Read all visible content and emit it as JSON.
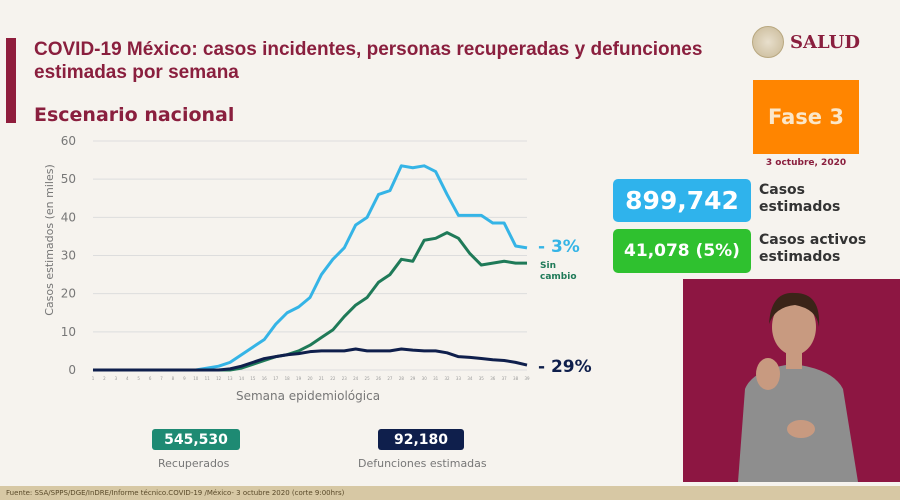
{
  "header": {
    "title": "COVID-19 México: casos incidentes, personas recuperadas y defunciones estimadas por semana",
    "subtitle": "Escenario nacional",
    "logo_text": "SALUD"
  },
  "phase": {
    "label": "Fase 3",
    "date": "3 octubre, 2020",
    "color": "#ff8500"
  },
  "stats": {
    "casos": {
      "value": "899,742",
      "label1": "Casos",
      "label2": "estimados",
      "color": "#2fb3ec"
    },
    "activos": {
      "value": "41,078 (5%)",
      "label1": "Casos activos",
      "label2": "estimados",
      "color": "#2fc12f"
    },
    "recuperados": {
      "value": "545,530",
      "label": "Recuperados",
      "color": "#1e8a73"
    },
    "defunciones": {
      "value": "92,180",
      "label": "Defunciones estimadas",
      "color": "#0f1f4c"
    }
  },
  "footer": "Fuente: SSA/SPPS/DGE/InDRE/Informe técnico.COVID-19 /México- 3 octubre 2020 (corte 9:00hrs)",
  "chart_data": {
    "type": "line",
    "xlabel": "Semana epidemiológica",
    "ylabel": "Casos estimados (en miles)",
    "ylim": [
      0,
      60
    ],
    "yticks": [
      0,
      10,
      20,
      30,
      40,
      50,
      60
    ],
    "grid": true,
    "x": [
      1,
      2,
      3,
      4,
      5,
      6,
      7,
      8,
      9,
      10,
      11,
      12,
      13,
      14,
      15,
      16,
      17,
      18,
      19,
      20,
      21,
      22,
      23,
      24,
      25,
      26,
      27,
      28,
      29,
      30,
      31,
      32,
      33,
      34,
      35,
      36,
      37,
      38,
      39
    ],
    "series": [
      {
        "color": "#35b4e6",
        "end_label": "- 3%",
        "values": [
          0,
          0,
          0,
          0,
          0,
          0,
          0,
          0,
          0,
          0,
          0.5,
          1,
          2,
          4,
          6,
          8,
          12,
          15,
          16.5,
          19,
          25,
          29,
          32,
          38,
          40,
          46,
          47,
          53.5,
          53,
          53.5,
          52,
          46,
          40.5,
          40.5,
          40.5,
          38.5,
          38.5,
          32.5,
          32
        ]
      },
      {
        "color": "#1f7a58",
        "end_label": "Sin cambio",
        "values": [
          0,
          0,
          0,
          0,
          0,
          0,
          0,
          0,
          0,
          0,
          0,
          0,
          0,
          0.5,
          1.5,
          2.5,
          3.5,
          4,
          5,
          6.5,
          8.5,
          10.5,
          14,
          17,
          19,
          23,
          25,
          29,
          28.5,
          34,
          34.5,
          36,
          34.5,
          30.5,
          27.5,
          28,
          28.5,
          28,
          28
        ]
      },
      {
        "color": "#0f1f4c",
        "end_label": "- 29%",
        "values": [
          0,
          0,
          0,
          0,
          0,
          0,
          0,
          0,
          0,
          0,
          0,
          0,
          0.3,
          1,
          2,
          3,
          3.5,
          4,
          4.3,
          4.8,
          5,
          5,
          5,
          5.5,
          5,
          5,
          5,
          5.5,
          5.2,
          5,
          5,
          4.5,
          3.5,
          3.3,
          3,
          2.7,
          2.5,
          2,
          1.3
        ]
      }
    ]
  }
}
